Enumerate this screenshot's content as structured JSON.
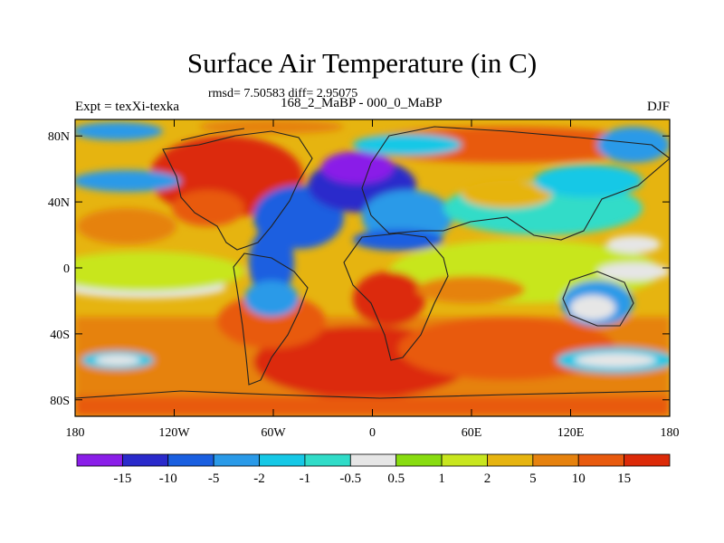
{
  "title": "Surface Air Temperature (in C)",
  "stats": "rmsd= 7.50583 diff= 2.95075",
  "experiment": "Expt = texXi-texka",
  "subtitle": "168_2_MaBP - 000_0_MaBP",
  "season": "DJF",
  "map": {
    "longitude_ticks": [
      {
        "value": -180,
        "label": "180"
      },
      {
        "value": -120,
        "label": "120W"
      },
      {
        "value": -60,
        "label": "60W"
      },
      {
        "value": 0,
        "label": "0"
      },
      {
        "value": 60,
        "label": "60E"
      },
      {
        "value": 120,
        "label": "120E"
      },
      {
        "value": 180,
        "label": "180"
      }
    ],
    "latitude_ticks": [
      {
        "value": 80,
        "label": "80N"
      },
      {
        "value": 40,
        "label": "40N"
      },
      {
        "value": 0,
        "label": "0"
      },
      {
        "value": -40,
        "label": "40S"
      },
      {
        "value": -80,
        "label": "80S"
      }
    ],
    "lon_range": [
      -180,
      180
    ],
    "lat_range": [
      -90,
      90
    ]
  },
  "colorbar": {
    "colors": [
      "#8a1ee8",
      "#2a2acb",
      "#1a5fe0",
      "#2a9ae8",
      "#16c8e6",
      "#30dcc8",
      "#e6e6e6",
      "#88dc10",
      "#c8e61e",
      "#e6b410",
      "#e6820e",
      "#e85a0e",
      "#dc2a08"
    ],
    "labels": [
      "-15",
      "-10",
      "-5",
      "-2",
      "-1",
      "-0.5",
      "0.5",
      "1",
      "2",
      "5",
      "10",
      "15"
    ]
  }
}
